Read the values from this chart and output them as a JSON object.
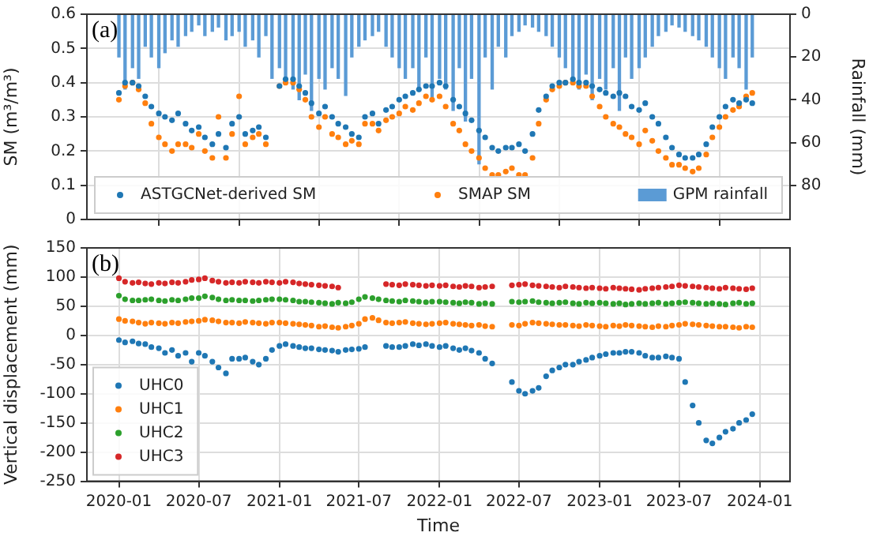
{
  "chart_data": [
    {
      "type": "scatter",
      "ylabel": "SM (m³/m³)",
      "y2label": "Rainfall (mm)",
      "annotations": [
        "(a)"
      ],
      "x": [
        "2020-01-01",
        "2020-01-15",
        "2020-02-01",
        "2020-02-15",
        "2020-03-01",
        "2020-03-15",
        "2020-04-01",
        "2020-04-15",
        "2020-05-01",
        "2020-05-15",
        "2020-06-01",
        "2020-06-15",
        "2020-07-01",
        "2020-07-15",
        "2020-08-01",
        "2020-08-15",
        "2020-09-01",
        "2020-09-15",
        "2020-10-01",
        "2020-10-15",
        "2020-11-01",
        "2020-11-15",
        "2020-12-01",
        "2020-12-15",
        "2021-01-01",
        "2021-01-15",
        "2021-02-01",
        "2021-02-15",
        "2021-03-01",
        "2021-03-15",
        "2021-04-01",
        "2021-04-15",
        "2021-05-01",
        "2021-05-15",
        "2021-06-01",
        "2021-06-15",
        "2021-07-01",
        "2021-07-15",
        "2021-08-01",
        "2021-08-15",
        "2021-09-01",
        "2021-09-15",
        "2021-10-01",
        "2021-10-15",
        "2021-11-01",
        "2021-11-15",
        "2021-12-01",
        "2021-12-15",
        "2022-01-01",
        "2022-01-15",
        "2022-02-01",
        "2022-02-15",
        "2022-03-01",
        "2022-03-15",
        "2022-04-01",
        "2022-04-15",
        "2022-05-01",
        "2022-05-15",
        "2022-06-01",
        "2022-06-15",
        "2022-07-01",
        "2022-07-15",
        "2022-08-01",
        "2022-08-15",
        "2022-09-01",
        "2022-09-15",
        "2022-10-01",
        "2022-10-15",
        "2022-11-01",
        "2022-11-15",
        "2022-12-01",
        "2022-12-15",
        "2023-01-01",
        "2023-01-15",
        "2023-02-01",
        "2023-02-15",
        "2023-03-01",
        "2023-03-15",
        "2023-04-01",
        "2023-04-15",
        "2023-05-01",
        "2023-05-15",
        "2023-06-01",
        "2023-06-15",
        "2023-07-01",
        "2023-07-15",
        "2023-08-01",
        "2023-08-15",
        "2023-09-01",
        "2023-09-15",
        "2023-10-01",
        "2023-10-15",
        "2023-11-01",
        "2023-11-15",
        "2023-12-01",
        "2023-12-15"
      ],
      "series": [
        {
          "name": "ASTGCNet-derived SM",
          "color": "#1f77b4",
          "values": [
            0.37,
            0.4,
            0.4,
            0.39,
            0.36,
            0.33,
            0.31,
            0.3,
            0.29,
            0.31,
            0.28,
            0.26,
            0.27,
            0.24,
            0.22,
            0.25,
            0.21,
            0.28,
            0.3,
            0.25,
            0.26,
            0.27,
            0.24,
            null,
            0.39,
            0.41,
            0.41,
            0.39,
            0.37,
            0.34,
            0.31,
            0.33,
            0.3,
            0.28,
            0.27,
            0.25,
            0.24,
            0.3,
            0.31,
            0.28,
            0.32,
            0.33,
            0.35,
            0.36,
            0.37,
            0.38,
            0.39,
            0.39,
            0.4,
            0.39,
            0.35,
            0.33,
            0.31,
            0.29,
            0.26,
            0.24,
            0.21,
            0.2,
            0.21,
            0.21,
            0.22,
            0.2,
            0.25,
            0.32,
            0.36,
            0.39,
            0.4,
            0.4,
            0.41,
            0.4,
            0.4,
            0.39,
            0.38,
            0.37,
            0.36,
            0.37,
            0.36,
            0.33,
            0.32,
            0.34,
            0.3,
            0.28,
            0.24,
            0.21,
            0.19,
            0.18,
            0.18,
            0.19,
            0.22,
            0.27,
            0.3,
            0.33,
            0.35,
            0.34,
            0.35,
            0.34
          ]
        },
        {
          "name": "SMAP SM",
          "color": "#ff7f0e",
          "values": [
            0.35,
            0.39,
            0.4,
            0.38,
            0.34,
            0.28,
            0.24,
            0.22,
            0.2,
            0.22,
            0.22,
            0.21,
            0.25,
            0.2,
            0.18,
            0.3,
            0.18,
            0.25,
            0.36,
            0.22,
            0.24,
            0.25,
            0.22,
            null,
            0.39,
            0.4,
            0.4,
            0.38,
            0.35,
            0.3,
            0.27,
            0.3,
            0.25,
            0.24,
            0.22,
            0.23,
            0.22,
            0.28,
            0.28,
            0.26,
            0.29,
            0.3,
            0.31,
            0.33,
            0.32,
            0.34,
            0.36,
            0.35,
            0.36,
            0.33,
            0.28,
            0.26,
            0.22,
            0.2,
            0.18,
            0.15,
            0.13,
            0.13,
            0.14,
            0.15,
            0.13,
            0.13,
            0.18,
            0.28,
            0.35,
            0.38,
            0.39,
            0.4,
            0.4,
            0.39,
            0.39,
            0.36,
            0.33,
            0.3,
            0.28,
            0.27,
            0.25,
            0.24,
            0.22,
            0.26,
            0.23,
            0.2,
            0.18,
            0.16,
            0.16,
            0.15,
            0.14,
            0.15,
            0.19,
            0.24,
            0.27,
            0.3,
            0.32,
            0.33,
            0.36,
            0.37
          ]
        },
        {
          "type": "bar",
          "axis": "y2",
          "name": "GPM rainfall",
          "color": "#5b9bd5",
          "values": [
            20,
            35,
            25,
            30,
            15,
            20,
            25,
            18,
            12,
            15,
            10,
            8,
            5,
            10,
            8,
            6,
            12,
            10,
            8,
            15,
            12,
            20,
            10,
            30,
            25,
            30,
            35,
            40,
            28,
            45,
            30,
            35,
            25,
            30,
            38,
            20,
            15,
            12,
            10,
            8,
            15,
            20,
            25,
            30,
            25,
            35,
            20,
            40,
            30,
            35,
            45,
            25,
            50,
            30,
            70,
            20,
            35,
            15,
            20,
            10,
            8,
            5,
            6,
            8,
            10,
            15,
            20,
            25,
            30,
            35,
            28,
            40,
            30,
            35,
            25,
            45,
            20,
            30,
            25,
            20,
            15,
            10,
            8,
            5,
            6,
            8,
            10,
            12,
            15,
            20,
            25,
            30,
            20,
            25,
            35,
            20
          ]
        }
      ],
      "xlim": [
        "2019-10-20",
        "2024-03-10"
      ],
      "xticks": [
        "2020-01",
        "2020-07",
        "2021-01",
        "2021-07",
        "2022-01",
        "2022-07",
        "2023-01",
        "2023-07",
        "2024-01"
      ],
      "ylim": [
        0,
        0.6
      ],
      "yticks": [
        0,
        0.1,
        0.2,
        0.3,
        0.4,
        0.5,
        0.6
      ],
      "y2lim": [
        96,
        0
      ],
      "y2ticks": [
        0,
        20,
        40,
        60,
        80
      ],
      "tick_labels": "y",
      "grid": true,
      "legend": "bottom",
      "marker": "circle"
    },
    {
      "type": "scatter",
      "xlabel": "Time",
      "ylabel": "Vertical displacement (mm)",
      "annotations": [
        "(b)"
      ],
      "x": [
        "2020-01-01",
        "2020-01-15",
        "2020-02-01",
        "2020-02-15",
        "2020-03-01",
        "2020-03-15",
        "2020-04-01",
        "2020-04-15",
        "2020-05-01",
        "2020-05-15",
        "2020-06-01",
        "2020-06-15",
        "2020-07-01",
        "2020-07-15",
        "2020-08-01",
        "2020-08-15",
        "2020-09-01",
        "2020-09-15",
        "2020-10-01",
        "2020-10-15",
        "2020-11-01",
        "2020-11-15",
        "2020-12-01",
        "2020-12-15",
        "2021-01-01",
        "2021-01-15",
        "2021-02-01",
        "2021-02-15",
        "2021-03-01",
        "2021-03-15",
        "2021-04-01",
        "2021-04-15",
        "2021-05-01",
        "2021-05-15",
        "2021-06-01",
        "2021-06-15",
        "2021-07-01",
        "2021-07-15",
        "2021-08-01",
        "2021-08-15",
        "2021-09-01",
        "2021-09-15",
        "2021-10-01",
        "2021-10-15",
        "2021-11-01",
        "2021-11-15",
        "2021-12-01",
        "2021-12-15",
        "2022-01-01",
        "2022-01-15",
        "2022-02-01",
        "2022-02-15",
        "2022-03-01",
        "2022-03-15",
        "2022-04-01",
        "2022-04-15",
        "2022-05-01",
        "2022-05-15",
        "2022-06-01",
        "2022-06-15",
        "2022-07-01",
        "2022-07-15",
        "2022-08-01",
        "2022-08-15",
        "2022-09-01",
        "2022-09-15",
        "2022-10-01",
        "2022-10-15",
        "2022-11-01",
        "2022-11-15",
        "2022-12-01",
        "2022-12-15",
        "2023-01-01",
        "2023-01-15",
        "2023-02-01",
        "2023-02-15",
        "2023-03-01",
        "2023-03-15",
        "2023-04-01",
        "2023-04-15",
        "2023-05-01",
        "2023-05-15",
        "2023-06-01",
        "2023-06-15",
        "2023-07-01",
        "2023-07-15",
        "2023-08-01",
        "2023-08-15",
        "2023-09-01",
        "2023-09-15",
        "2023-10-01",
        "2023-10-15",
        "2023-11-01",
        "2023-11-15",
        "2023-12-01",
        "2023-12-15"
      ],
      "series": [
        {
          "name": "UHC0",
          "color": "#1f77b4",
          "values": [
            -8,
            -12,
            -10,
            -14,
            -15,
            -20,
            -22,
            -30,
            -25,
            -35,
            -30,
            -45,
            -30,
            -35,
            -45,
            -55,
            -65,
            -40,
            -40,
            -38,
            -45,
            -50,
            -40,
            -25,
            -18,
            -15,
            -18,
            -20,
            -22,
            -22,
            -24,
            -25,
            -26,
            -28,
            -25,
            -24,
            -23,
            -20,
            null,
            null,
            -18,
            -20,
            -20,
            -18,
            -15,
            -17,
            -15,
            -18,
            -20,
            -18,
            -22,
            -25,
            -22,
            -26,
            -30,
            -40,
            -48,
            null,
            null,
            -80,
            -95,
            -100,
            -95,
            -90,
            -70,
            -60,
            -55,
            -50,
            -50,
            -45,
            -42,
            -38,
            -35,
            -32,
            -30,
            -30,
            -28,
            -28,
            -30,
            -35,
            -38,
            -38,
            -36,
            -38,
            -40,
            -80,
            -120,
            -150,
            -180,
            -185,
            -175,
            -165,
            -160,
            -150,
            -145,
            -135
          ]
        },
        {
          "name": "UHC1",
          "color": "#ff7f0e",
          "values": [
            28,
            25,
            24,
            22,
            20,
            22,
            21,
            20,
            22,
            21,
            23,
            24,
            25,
            27,
            26,
            24,
            22,
            22,
            21,
            23,
            22,
            21,
            20,
            22,
            22,
            21,
            20,
            19,
            18,
            17,
            15,
            16,
            14,
            13,
            15,
            17,
            20,
            28,
            30,
            26,
            22,
            21,
            22,
            23,
            21,
            20,
            19,
            20,
            21,
            22,
            20,
            19,
            18,
            17,
            18,
            16,
            15,
            null,
            null,
            18,
            17,
            20,
            22,
            21,
            20,
            19,
            18,
            18,
            17,
            16,
            18,
            17,
            16,
            15,
            17,
            16,
            18,
            17,
            16,
            15,
            14,
            16,
            15,
            17,
            18,
            20,
            19,
            18,
            17,
            16,
            15,
            15,
            14,
            13,
            15,
            14
          ]
        },
        {
          "name": "UHC2",
          "color": "#2ca02c",
          "values": [
            68,
            62,
            60,
            60,
            61,
            62,
            60,
            59,
            61,
            60,
            62,
            64,
            64,
            67,
            65,
            62,
            60,
            61,
            60,
            60,
            59,
            60,
            61,
            62,
            62,
            61,
            60,
            58,
            58,
            57,
            56,
            55,
            54,
            56,
            55,
            57,
            62,
            66,
            64,
            62,
            60,
            59,
            58,
            60,
            59,
            58,
            57,
            58,
            58,
            57,
            56,
            55,
            57,
            56,
            54,
            55,
            54,
            null,
            null,
            58,
            57,
            58,
            59,
            57,
            56,
            55,
            56,
            57,
            55,
            54,
            56,
            55,
            56,
            55,
            54,
            55,
            53,
            54,
            55,
            54,
            55,
            56,
            54,
            55,
            56,
            57,
            56,
            55,
            54,
            55,
            54,
            53,
            55,
            56,
            54,
            55
          ]
        },
        {
          "name": "UHC3",
          "color": "#d62728",
          "values": [
            98,
            92,
            90,
            91,
            89,
            88,
            90,
            89,
            91,
            90,
            92,
            95,
            96,
            98,
            94,
            92,
            90,
            91,
            90,
            92,
            91,
            90,
            92,
            91,
            90,
            92,
            91,
            89,
            88,
            87,
            86,
            85,
            84,
            82,
            null,
            null,
            null,
            null,
            null,
            null,
            88,
            87,
            86,
            88,
            87,
            86,
            85,
            86,
            85,
            86,
            84,
            83,
            85,
            84,
            82,
            83,
            84,
            null,
            null,
            86,
            87,
            88,
            86,
            85,
            84,
            83,
            82,
            84,
            83,
            82,
            81,
            82,
            81,
            80,
            82,
            81,
            80,
            79,
            78,
            80,
            81,
            82,
            83,
            84,
            86,
            85,
            84,
            83,
            82,
            81,
            80,
            82,
            81,
            80,
            79,
            81
          ]
        }
      ],
      "xlim": [
        "2019-10-20",
        "2024-03-10"
      ],
      "xticks": [
        "2020-01",
        "2020-07",
        "2021-01",
        "2021-07",
        "2022-01",
        "2022-07",
        "2023-01",
        "2023-07",
        "2024-01"
      ],
      "ylim": [
        -250,
        150
      ],
      "yticks": [
        -250,
        -200,
        -150,
        -100,
        -50,
        0,
        50,
        100,
        150
      ],
      "grid": true,
      "legend": "bottom left",
      "marker": "circle"
    }
  ]
}
